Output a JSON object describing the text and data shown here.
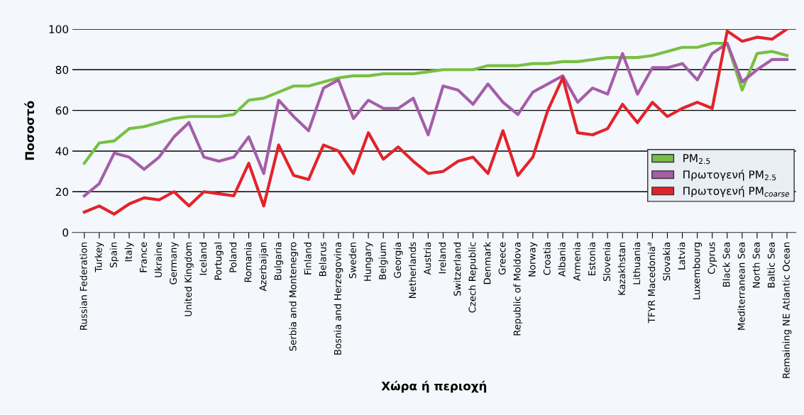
{
  "chart_data": {
    "type": "line",
    "ylabel": "Ποσοστό",
    "xlabel": "Χώρα ή περιοχή",
    "categories": [
      "Russian Federation",
      "Turkey",
      "Spain",
      "Italy",
      "France",
      "Ukraine",
      "Germany",
      "United Kingdom",
      "Iceland",
      "Portugal",
      "Poland",
      "Romania",
      "Azerbaijan",
      "Bulgaria",
      "Serbia and Montenegro",
      "Finland",
      "Belarus",
      "Bosnia and Herzegovina",
      "Sweden",
      "Hungary",
      "Belgium",
      "Georgia",
      "Netherlands",
      "Austria",
      "Ireland",
      "Switzerland",
      "Czech Republic",
      "Denmark",
      "Greece",
      "Republic of Moldova",
      "Norway",
      "Croatia",
      "Albania",
      "Armenia",
      "Estonia",
      "Slovenia",
      "Kazakhstan",
      "Lithuania",
      "TFYR Macedonia$^{a}$",
      "Slovakia",
      "Latvia",
      "Luxembourg",
      "Cyprus",
      "Black Sea",
      "Mediterranean Sea",
      "North Sea",
      "Baltic Sea",
      "Remaining NE Atlantic Ocean"
    ],
    "series": [
      {
        "name": "PM$_{2.5}$",
        "color": "#77c043",
        "values": [
          34,
          44,
          45,
          51,
          52,
          54,
          56,
          57,
          57,
          57,
          58,
          65,
          66,
          69,
          72,
          72,
          74,
          76,
          77,
          77,
          78,
          78,
          78,
          79,
          80,
          80,
          80,
          82,
          82,
          82,
          83,
          83,
          84,
          84,
          85,
          86,
          86,
          86,
          87,
          89,
          91,
          91,
          93,
          93,
          70,
          88,
          89,
          87
        ]
      },
      {
        "name": "Πρωτογενή PM$_{2.5}$",
        "color": "#a55ea8",
        "values": [
          18,
          24,
          39,
          37,
          31,
          37,
          47,
          54,
          37,
          35,
          37,
          47,
          29,
          65,
          57,
          50,
          71,
          75,
          56,
          65,
          61,
          61,
          66,
          48,
          72,
          70,
          63,
          73,
          64,
          58,
          69,
          73,
          77,
          64,
          71,
          68,
          88,
          68,
          81,
          81,
          83,
          75,
          88,
          93,
          74,
          80,
          85,
          85
        ]
      },
      {
        "name": "Πρωτογενή PM$_{coarse}$",
        "color": "#e3232a",
        "values": [
          10,
          13,
          9,
          14,
          17,
          16,
          20,
          13,
          20,
          19,
          18,
          34,
          13,
          43,
          28,
          26,
          43,
          40,
          29,
          49,
          36,
          42,
          35,
          29,
          30,
          35,
          37,
          29,
          50,
          28,
          37,
          60,
          76,
          49,
          48,
          51,
          63,
          54,
          64,
          57,
          61,
          64,
          61,
          99,
          94,
          96,
          95,
          100
        ]
      }
    ],
    "ylim": [
      0,
      100
    ],
    "yticks": [
      0,
      20,
      40,
      60,
      80,
      100
    ],
    "grid": "y",
    "legend": "right",
    "marker": "none",
    "line_style": "solid"
  }
}
